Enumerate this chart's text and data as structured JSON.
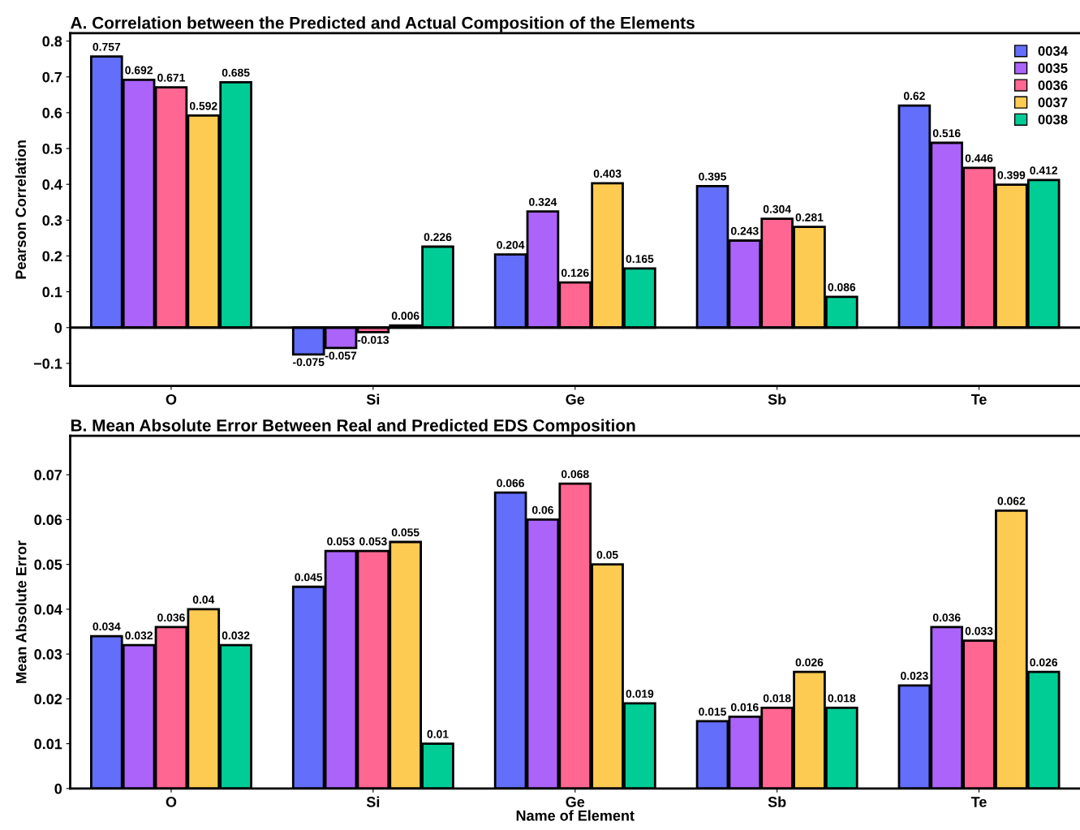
{
  "chart_data": [
    {
      "type": "bar",
      "title": "A. Correlation between the Predicted and Actual Composition of the Elements",
      "ylabel": "Pearson Correlation",
      "categories": [
        "O",
        "Si",
        "Ge",
        "Sb",
        "Te"
      ],
      "series": [
        {
          "name": "0034",
          "color": "#636efa",
          "values": [
            0.757,
            -0.075,
            0.204,
            0.395,
            0.62
          ]
        },
        {
          "name": "0035",
          "color": "#ab63fa",
          "values": [
            0.692,
            -0.057,
            0.324,
            0.243,
            0.516
          ]
        },
        {
          "name": "0036",
          "color": "#ff6692",
          "values": [
            0.671,
            -0.013,
            0.126,
            0.304,
            0.446
          ]
        },
        {
          "name": "0037",
          "color": "#fecb52",
          "values": [
            0.592,
            0.006,
            0.403,
            0.281,
            0.399
          ]
        },
        {
          "name": "0038",
          "color": "#00cc96",
          "values": [
            0.685,
            0.226,
            0.165,
            0.086,
            0.412
          ]
        }
      ],
      "ylim": [
        -0.163,
        0.822
      ],
      "yticks": [
        {
          "value": -0.1,
          "label": "−0.1"
        },
        0,
        0.1,
        0.2,
        0.3,
        0.4,
        0.5,
        0.6,
        0.7,
        0.8
      ],
      "ref_lines": [
        {
          "axis": "y",
          "value": 0,
          "color": "#000000"
        }
      ],
      "data_labels": true,
      "legend": "top right",
      "grid": false
    },
    {
      "type": "bar",
      "title": "B. Mean Absolute Error Between Real and Predicted EDS Composition",
      "ylabel": "Mean Absolute Error",
      "xlabel": "Name of Element",
      "categories": [
        "O",
        "Si",
        "Ge",
        "Sb",
        "Te"
      ],
      "series": [
        {
          "name": "0034",
          "color": "#636efa",
          "values": [
            0.034,
            0.045,
            0.066,
            0.015,
            0.023
          ]
        },
        {
          "name": "0035",
          "color": "#ab63fa",
          "values": [
            0.032,
            0.053,
            0.06,
            0.016,
            0.036
          ]
        },
        {
          "name": "0036",
          "color": "#ff6692",
          "values": [
            0.036,
            0.053,
            0.068,
            0.018,
            0.033
          ]
        },
        {
          "name": "0037",
          "color": "#fecb52",
          "values": [
            0.04,
            0.055,
            0.05,
            0.026,
            0.062
          ]
        },
        {
          "name": "0038",
          "color": "#00cc96",
          "values": [
            0.032,
            0.01,
            0.019,
            0.018,
            0.026
          ]
        }
      ],
      "ylim": [
        0,
        0.0787
      ],
      "yticks": [
        0,
        0.01,
        0.02,
        0.03,
        0.04,
        0.05,
        0.06,
        0.07
      ],
      "data_labels": true,
      "legend": false,
      "grid": false
    }
  ]
}
